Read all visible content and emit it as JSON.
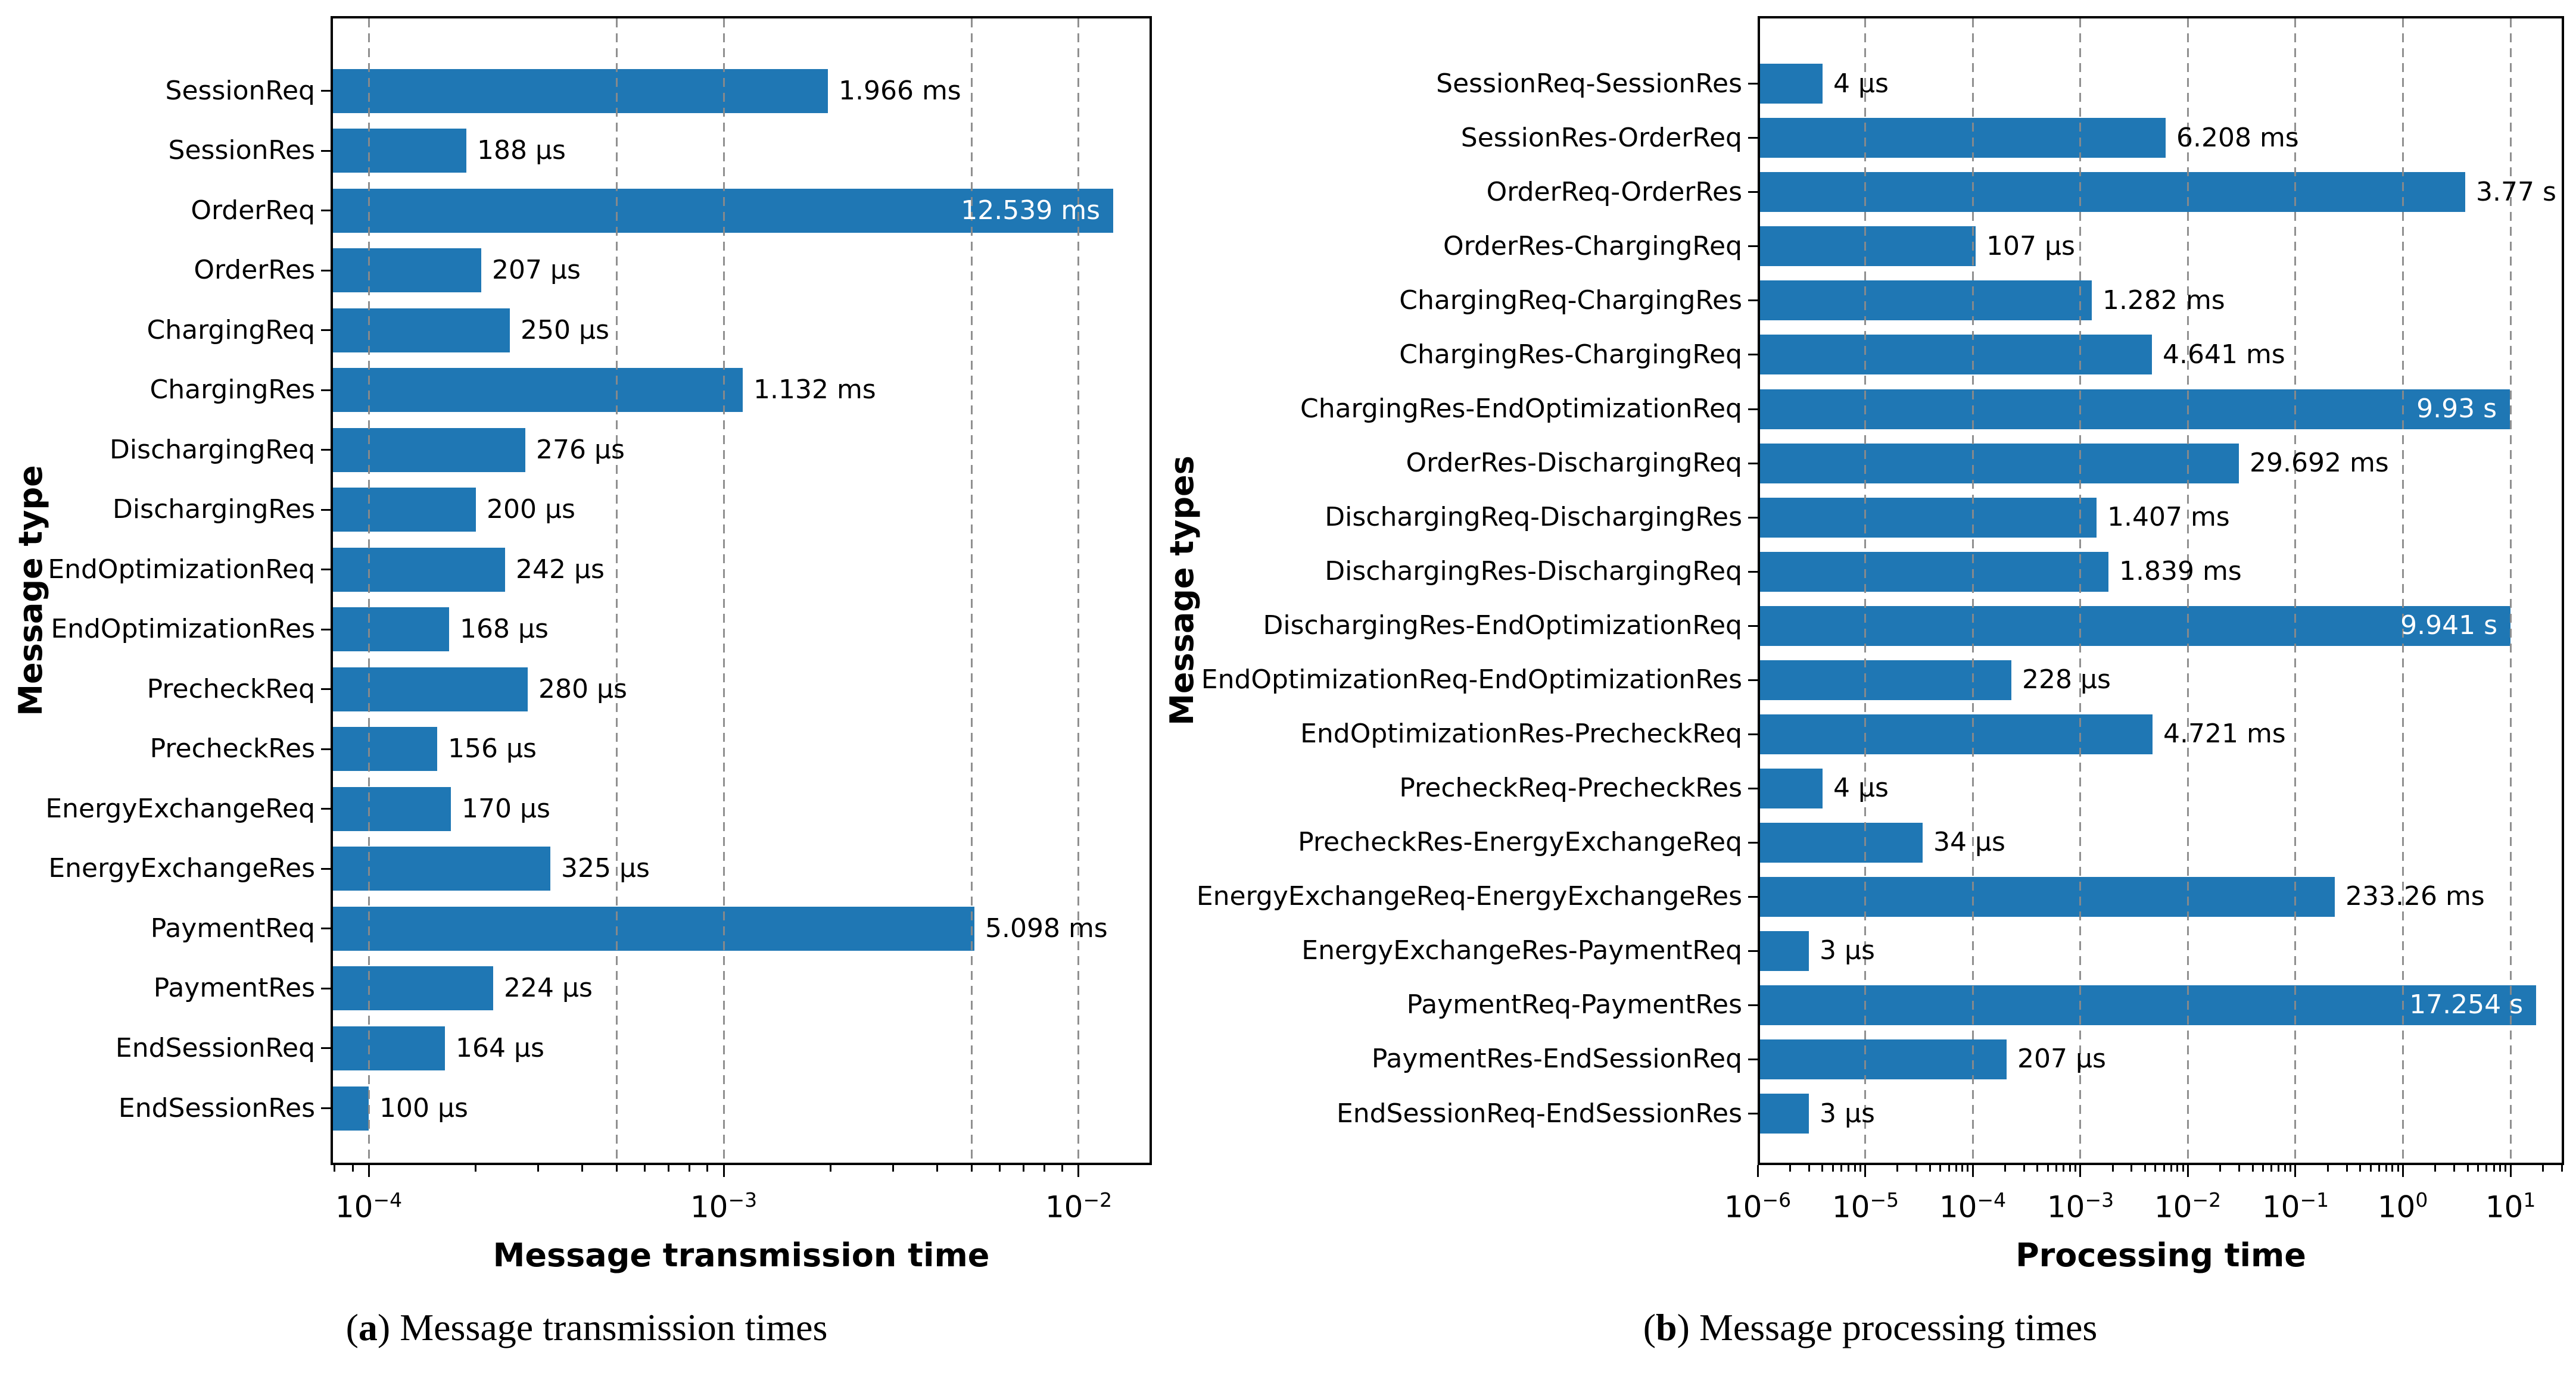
{
  "colors": {
    "bar": "#1f77b4",
    "grid": "#8a8a8a",
    "text": "#000000",
    "inside_label": "#ffffff",
    "background": "#ffffff"
  },
  "captions": {
    "a": {
      "open": "(",
      "letter": "a",
      "close": ")",
      "text": "Message transmission times"
    },
    "b": {
      "open": "(",
      "letter": "b",
      "close": ")",
      "text": "Message processing times"
    }
  },
  "chart_data": [
    {
      "type": "bar",
      "orientation": "horizontal",
      "xscale": "log",
      "grid": true,
      "legend": false,
      "xlabel": "Message transmission time",
      "ylabel": "Message type",
      "xlim": [
        7.8e-05,
        0.0161
      ],
      "xtick_exponents": [
        -4,
        -3,
        -2
      ],
      "gridline_values": [
        0.0001,
        0.0005,
        0.001,
        0.005,
        0.01
      ],
      "categories": [
        "SessionReq",
        "SessionRes",
        "OrderReq",
        "OrderRes",
        "ChargingReq",
        "ChargingRes",
        "DischargingReq",
        "DischargingRes",
        "EndOptimizationReq",
        "EndOptimizationRes",
        "PrecheckReq",
        "PrecheckRes",
        "EnergyExchangeReq",
        "EnergyExchangeRes",
        "PaymentReq",
        "PaymentRes",
        "EndSessionReq",
        "EndSessionRes"
      ],
      "values_seconds": [
        0.001966,
        0.000188,
        0.012539,
        0.000207,
        0.00025,
        0.001132,
        0.000276,
        0.0002,
        0.000242,
        0.000168,
        0.00028,
        0.000156,
        0.00017,
        0.000325,
        0.005098,
        0.000224,
        0.000164,
        0.0001
      ],
      "value_labels": [
        "1.966 ms",
        "188 µs",
        "12.539 ms",
        "207 µs",
        "250 µs",
        "1.132 ms",
        "276 µs",
        "200 µs",
        "242 µs",
        "168 µs",
        "280 µs",
        "156 µs",
        "170 µs",
        "325 µs",
        "5.098 ms",
        "224 µs",
        "164 µs",
        "100 µs"
      ],
      "label_inside": [
        false,
        false,
        true,
        false,
        false,
        false,
        false,
        false,
        false,
        false,
        false,
        false,
        false,
        false,
        false,
        false,
        false,
        false
      ]
    },
    {
      "type": "bar",
      "orientation": "horizontal",
      "xscale": "log",
      "grid": true,
      "legend": false,
      "xlabel": "Processing time",
      "ylabel": "Message types",
      "xlim": [
        1e-06,
        31.5
      ],
      "xtick_exponents": [
        -6,
        -5,
        -4,
        -3,
        -2,
        -1,
        0,
        1
      ],
      "gridline_values": [
        1e-05,
        0.0001,
        0.001,
        0.01,
        0.1,
        1,
        10
      ],
      "categories": [
        "SessionReq-SessionRes",
        "SessionRes-OrderReq",
        "OrderReq-OrderRes",
        "OrderRes-ChargingReq",
        "ChargingReq-ChargingRes",
        "ChargingRes-ChargingReq",
        "ChargingRes-EndOptimizationReq",
        "OrderRes-DischargingReq",
        "DischargingReq-DischargingRes",
        "DischargingRes-DischargingReq",
        "DischargingRes-EndOptimizationReq",
        "EndOptimizationReq-EndOptimizationRes",
        "EndOptimizationRes-PrecheckReq",
        "PrecheckReq-PrecheckRes",
        "PrecheckRes-EnergyExchangeReq",
        "EnergyExchangeReq-EnergyExchangeRes",
        "EnergyExchangeRes-PaymentReq",
        "PaymentReq-PaymentRes",
        "PaymentRes-EndSessionReq",
        "EndSessionReq-EndSessionRes"
      ],
      "values_seconds": [
        4e-06,
        0.006208,
        3.77,
        0.000107,
        0.001282,
        0.004641,
        9.93,
        0.029692,
        0.001407,
        0.001839,
        9.941,
        0.000228,
        0.004721,
        4e-06,
        3.4e-05,
        0.23326,
        3e-06,
        17.254,
        0.000207,
        3e-06
      ],
      "value_labels": [
        "4 µs",
        "6.208 ms",
        "3.77 s",
        "107 µs",
        "1.282 ms",
        "4.641 ms",
        "9.93 s",
        "29.692 ms",
        "1.407 ms",
        "1.839 ms",
        "9.941 s",
        "228 µs",
        "4.721 ms",
        "4 µs",
        "34 µs",
        "233.26 ms",
        "3 µs",
        "17.254 s",
        "207 µs",
        "3 µs"
      ],
      "label_inside": [
        false,
        false,
        false,
        false,
        false,
        false,
        true,
        false,
        false,
        false,
        true,
        false,
        false,
        false,
        false,
        false,
        false,
        true,
        false,
        false
      ]
    }
  ]
}
